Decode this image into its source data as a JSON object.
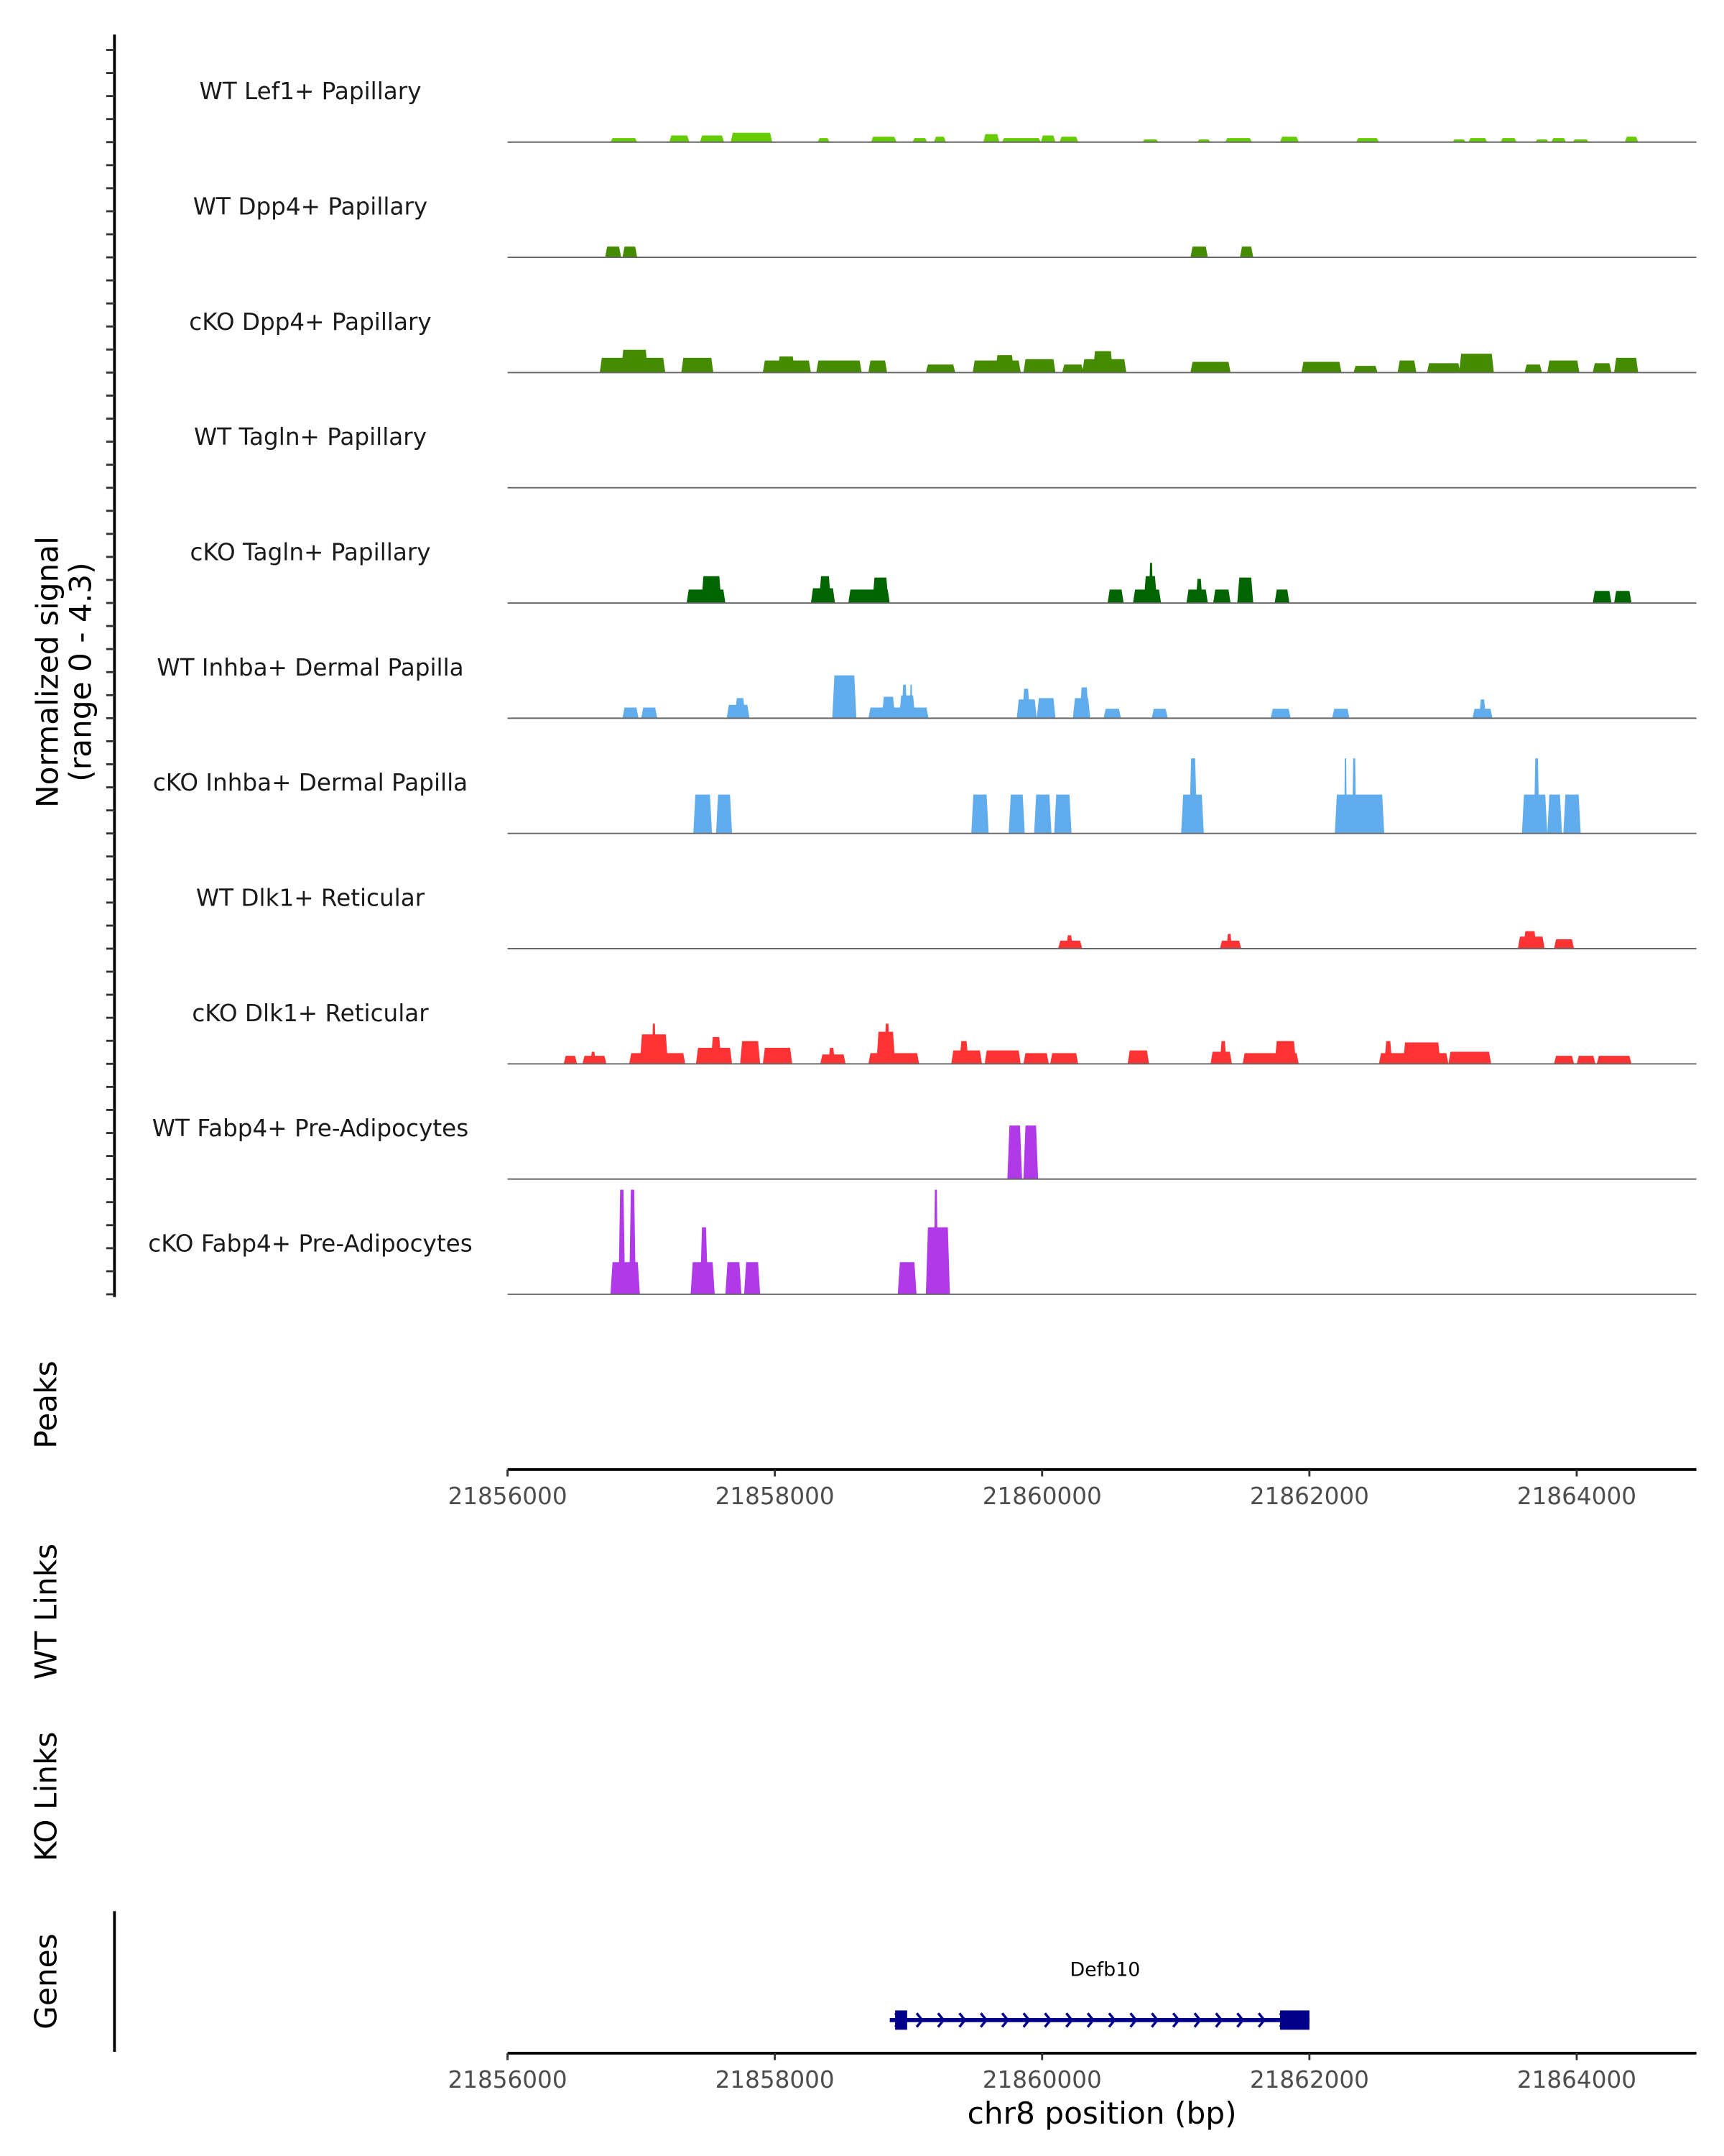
{
  "chart_data": {
    "type": "area",
    "ylabel": "Normalized signal",
    "ylabel_sub": "(range 0 - 4.3)",
    "ylim": [
      0,
      4.3
    ],
    "xlabel": "chr8 position (bp)",
    "xlim": [
      21856000,
      21864900
    ],
    "xticks": [
      "21856000",
      "21858000",
      "21860000",
      "21862000",
      "21864000"
    ],
    "xtick_values": [
      21856000,
      21858000,
      21860000,
      21862000,
      21864000
    ],
    "tracks": [
      {
        "name": "WT Lef1+ Papillary",
        "color": "#66CC00",
        "peaks": [
          [
            21856770,
            21856970,
            0.15
          ],
          [
            21857210,
            21857360,
            0.25
          ],
          [
            21857440,
            21857620,
            0.25
          ],
          [
            21857670,
            21857980,
            0.35
          ],
          [
            21858320,
            21858410,
            0.15
          ],
          [
            21858720,
            21858910,
            0.2
          ],
          [
            21859030,
            21859140,
            0.15
          ],
          [
            21859190,
            21859280,
            0.2
          ],
          [
            21859560,
            21859680,
            0.3
          ],
          [
            21859700,
            21859990,
            0.15
          ],
          [
            21859990,
            21860100,
            0.25
          ],
          [
            21860130,
            21860270,
            0.2
          ],
          [
            21860750,
            21860870,
            0.1
          ],
          [
            21861160,
            21861260,
            0.1
          ],
          [
            21861370,
            21861570,
            0.15
          ],
          [
            21861780,
            21861920,
            0.2
          ],
          [
            21862350,
            21862520,
            0.15
          ],
          [
            21863070,
            21863170,
            0.1
          ],
          [
            21863190,
            21863330,
            0.15
          ],
          [
            21863430,
            21863550,
            0.15
          ],
          [
            21863690,
            21863790,
            0.1
          ],
          [
            21863810,
            21863920,
            0.15
          ],
          [
            21863970,
            21864090,
            0.1
          ],
          [
            21864360,
            21864460,
            0.2
          ]
        ]
      },
      {
        "name": "WT Dpp4+ Papillary",
        "color": "#458B00",
        "peaks": [
          [
            21856730,
            21856850,
            0.4
          ],
          [
            21856860,
            21856970,
            0.4
          ],
          [
            21861110,
            21861240,
            0.4
          ],
          [
            21861480,
            21861580,
            0.4
          ]
        ]
      },
      {
        "name": "cKO Dpp4+ Papillary",
        "color": "#458B00",
        "peaks": [
          [
            21856690,
            21857180,
            0.55
          ],
          [
            21856850,
            21857050,
            0.85
          ],
          [
            21857300,
            21857540,
            0.55
          ],
          [
            21857910,
            21858270,
            0.45
          ],
          [
            21858020,
            21858150,
            0.6
          ],
          [
            21858310,
            21858650,
            0.45
          ],
          [
            21858700,
            21858840,
            0.45
          ],
          [
            21859130,
            21859350,
            0.3
          ],
          [
            21859480,
            21859840,
            0.45
          ],
          [
            21859650,
            21859790,
            0.65
          ],
          [
            21859860,
            21860100,
            0.5
          ],
          [
            21860150,
            21860310,
            0.3
          ],
          [
            21860300,
            21860630,
            0.5
          ],
          [
            21860380,
            21860530,
            0.8
          ],
          [
            21861110,
            21861410,
            0.4
          ],
          [
            21861940,
            21862240,
            0.4
          ],
          [
            21862330,
            21862510,
            0.25
          ],
          [
            21862660,
            21862800,
            0.45
          ],
          [
            21862880,
            21863130,
            0.35
          ],
          [
            21863120,
            21863380,
            0.7
          ],
          [
            21863610,
            21863740,
            0.3
          ],
          [
            21863780,
            21864020,
            0.45
          ],
          [
            21864120,
            21864260,
            0.35
          ],
          [
            21864280,
            21864460,
            0.55
          ]
        ]
      },
      {
        "name": "WT Tagln+ Papillary",
        "color": "#006400",
        "peaks": []
      },
      {
        "name": "cKO Tagln+ Papillary",
        "color": "#006400",
        "peaks": [
          [
            21857340,
            21857630,
            0.5
          ],
          [
            21857450,
            21857600,
            1.0
          ],
          [
            21858270,
            21858450,
            0.55
          ],
          [
            21858330,
            21858420,
            1.0
          ],
          [
            21858550,
            21858860,
            0.5
          ],
          [
            21858730,
            21858850,
            0.95
          ],
          [
            21860490,
            21860610,
            0.5
          ],
          [
            21860680,
            21860890,
            0.5
          ],
          [
            21860760,
            21860860,
            1.0
          ],
          [
            21860800,
            21860830,
            1.5
          ],
          [
            21861080,
            21861240,
            0.5
          ],
          [
            21861150,
            21861200,
            0.9
          ],
          [
            21861280,
            21861410,
            0.5
          ],
          [
            21861460,
            21861580,
            0.95
          ],
          [
            21861740,
            21861850,
            0.5
          ],
          [
            21864120,
            21864260,
            0.45
          ],
          [
            21864280,
            21864410,
            0.45
          ]
        ]
      },
      {
        "name": "WT Inhba+ Dermal Papilla",
        "color": "#60ACEC",
        "peaks": [
          [
            21856860,
            21856980,
            0.4
          ],
          [
            21857000,
            21857120,
            0.4
          ],
          [
            21857640,
            21857810,
            0.5
          ],
          [
            21857700,
            21857780,
            0.75
          ],
          [
            21858430,
            21858610,
            1.6
          ],
          [
            21858700,
            21859150,
            0.4
          ],
          [
            21858800,
            21858900,
            0.8
          ],
          [
            21858930,
            21859050,
            0.85
          ],
          [
            21858950,
            21858990,
            1.25
          ],
          [
            21859010,
            21859030,
            1.25
          ],
          [
            21859810,
            21859960,
            0.7
          ],
          [
            21859850,
            21859910,
            1.1
          ],
          [
            21859960,
            21860100,
            0.75
          ],
          [
            21860230,
            21860360,
            0.75
          ],
          [
            21860280,
            21860350,
            1.15
          ],
          [
            21860460,
            21860590,
            0.35
          ],
          [
            21860820,
            21860940,
            0.35
          ],
          [
            21861710,
            21861860,
            0.35
          ],
          [
            21862170,
            21862300,
            0.35
          ],
          [
            21863220,
            21863370,
            0.35
          ],
          [
            21863270,
            21863320,
            0.7
          ]
        ]
      },
      {
        "name": "cKO Inhba+ Dermal Papilla",
        "color": "#60ACEC",
        "peaks": [
          [
            21857390,
            21857530,
            1.45
          ],
          [
            21857560,
            21857680,
            1.45
          ],
          [
            21859470,
            21859600,
            1.45
          ],
          [
            21859750,
            21859870,
            1.45
          ],
          [
            21859940,
            21860070,
            1.45
          ],
          [
            21860090,
            21860220,
            1.45
          ],
          [
            21861040,
            21861210,
            1.45
          ],
          [
            21861100,
            21861160,
            2.8
          ],
          [
            21862190,
            21862560,
            1.45
          ],
          [
            21862260,
            21862280,
            2.8
          ],
          [
            21862320,
            21862350,
            2.8
          ],
          [
            21863590,
            21863780,
            1.45
          ],
          [
            21863680,
            21863720,
            2.8
          ],
          [
            21863780,
            21863890,
            1.45
          ],
          [
            21863900,
            21864030,
            1.45
          ]
        ]
      },
      {
        "name": "WT Dlk1+ Reticular",
        "color": "#FF3333",
        "peaks": [
          [
            21860120,
            21860300,
            0.3
          ],
          [
            21860180,
            21860230,
            0.5
          ],
          [
            21861330,
            21861490,
            0.3
          ],
          [
            21861380,
            21861420,
            0.55
          ],
          [
            21863560,
            21863760,
            0.45
          ],
          [
            21863600,
            21863700,
            0.65
          ],
          [
            21863830,
            21863980,
            0.35
          ]
        ]
      },
      {
        "name": "cKO Dlk1+ Reticular",
        "color": "#FF3333",
        "peaks": [
          [
            21856420,
            21856520,
            0.3
          ],
          [
            21856560,
            21856740,
            0.3
          ],
          [
            21856620,
            21856660,
            0.45
          ],
          [
            21856910,
            21857330,
            0.4
          ],
          [
            21856990,
            21857200,
            1.1
          ],
          [
            21857080,
            21857110,
            1.5
          ],
          [
            21857410,
            21857680,
            0.6
          ],
          [
            21857520,
            21857600,
            1.0
          ],
          [
            21857740,
            21857890,
            0.85
          ],
          [
            21857910,
            21858130,
            0.6
          ],
          [
            21858340,
            21858530,
            0.35
          ],
          [
            21858400,
            21858450,
            0.6
          ],
          [
            21858700,
            21859080,
            0.4
          ],
          [
            21858760,
            21858900,
            1.2
          ],
          [
            21858820,
            21858860,
            1.5
          ],
          [
            21859320,
            21859550,
            0.5
          ],
          [
            21859380,
            21859450,
            0.85
          ],
          [
            21859570,
            21859840,
            0.5
          ],
          [
            21859860,
            21860050,
            0.4
          ],
          [
            21860060,
            21860270,
            0.4
          ],
          [
            21860640,
            21860800,
            0.5
          ],
          [
            21861260,
            21861420,
            0.45
          ],
          [
            21861330,
            21861380,
            0.85
          ],
          [
            21861500,
            21861920,
            0.4
          ],
          [
            21861740,
            21861900,
            0.85
          ],
          [
            21862520,
            21863040,
            0.4
          ],
          [
            21862560,
            21862620,
            0.85
          ],
          [
            21862700,
            21862980,
            0.8
          ],
          [
            21863040,
            21863360,
            0.45
          ],
          [
            21863830,
            21863980,
            0.3
          ],
          [
            21864000,
            21864140,
            0.3
          ],
          [
            21864150,
            21864410,
            0.3
          ]
        ]
      },
      {
        "name": "WT Fabp4+ Pre-Adipocytes",
        "color": "#B03AE8",
        "peaks": [
          [
            21859740,
            21859850,
            2.0
          ],
          [
            21859860,
            21859970,
            2.0
          ]
        ]
      },
      {
        "name": "cKO Fabp4+ Pre-Adipocytes",
        "color": "#B03AE8",
        "peaks": [
          [
            21856770,
            21856990,
            1.2
          ],
          [
            21856830,
            21856880,
            3.9
          ],
          [
            21856910,
            21856960,
            3.9
          ],
          [
            21857370,
            21857550,
            1.2
          ],
          [
            21857440,
            21857500,
            2.5
          ],
          [
            21857630,
            21857750,
            1.2
          ],
          [
            21857770,
            21857890,
            1.2
          ],
          [
            21858920,
            21859060,
            1.2
          ],
          [
            21859130,
            21859310,
            2.5
          ],
          [
            21859190,
            21859220,
            3.9
          ]
        ]
      }
    ],
    "panels": {
      "peaks_label": "Peaks",
      "wt_links_label": "WT Links",
      "ko_links_label": "KO Links",
      "genes_label": "Genes"
    },
    "genes": [
      {
        "name": "Defb10",
        "start": 21858860,
        "end": 21862000,
        "strand": "+",
        "color": "#00008B",
        "exons": [
          [
            21858900,
            21858990
          ],
          [
            21861780,
            21862000
          ]
        ]
      }
    ]
  }
}
